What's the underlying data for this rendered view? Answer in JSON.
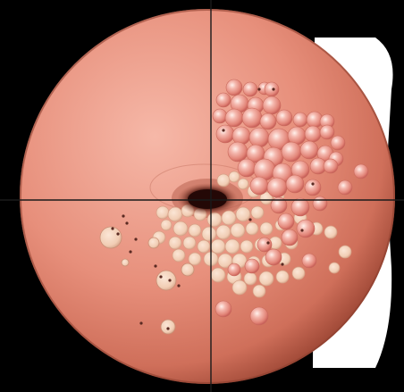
{
  "image": {
    "subject": "cervix-illustration",
    "colors": {
      "background": "#000000",
      "side_panel": "#ffffff",
      "tissue_light": "#f1a797",
      "tissue_mid": "#de8470",
      "tissue_edge": "#a24a38",
      "os_dark": "#2a0b07",
      "os_ring": "#8a3d2d",
      "red_bubble": "#e9938a",
      "red_bubble_highlight": "#fff2ee",
      "pale_bubble": "#f3d3bd",
      "pale_bubble_edge": "#cf9c80",
      "dot": "#5a2a22",
      "crosshair": "#1a1a1a"
    },
    "crosshair": {
      "visible": true
    },
    "lesion_regions": [
      "red-cluster-upper-right",
      "pale-cluster-lower",
      "scattered-pale-cysts-left"
    ]
  }
}
